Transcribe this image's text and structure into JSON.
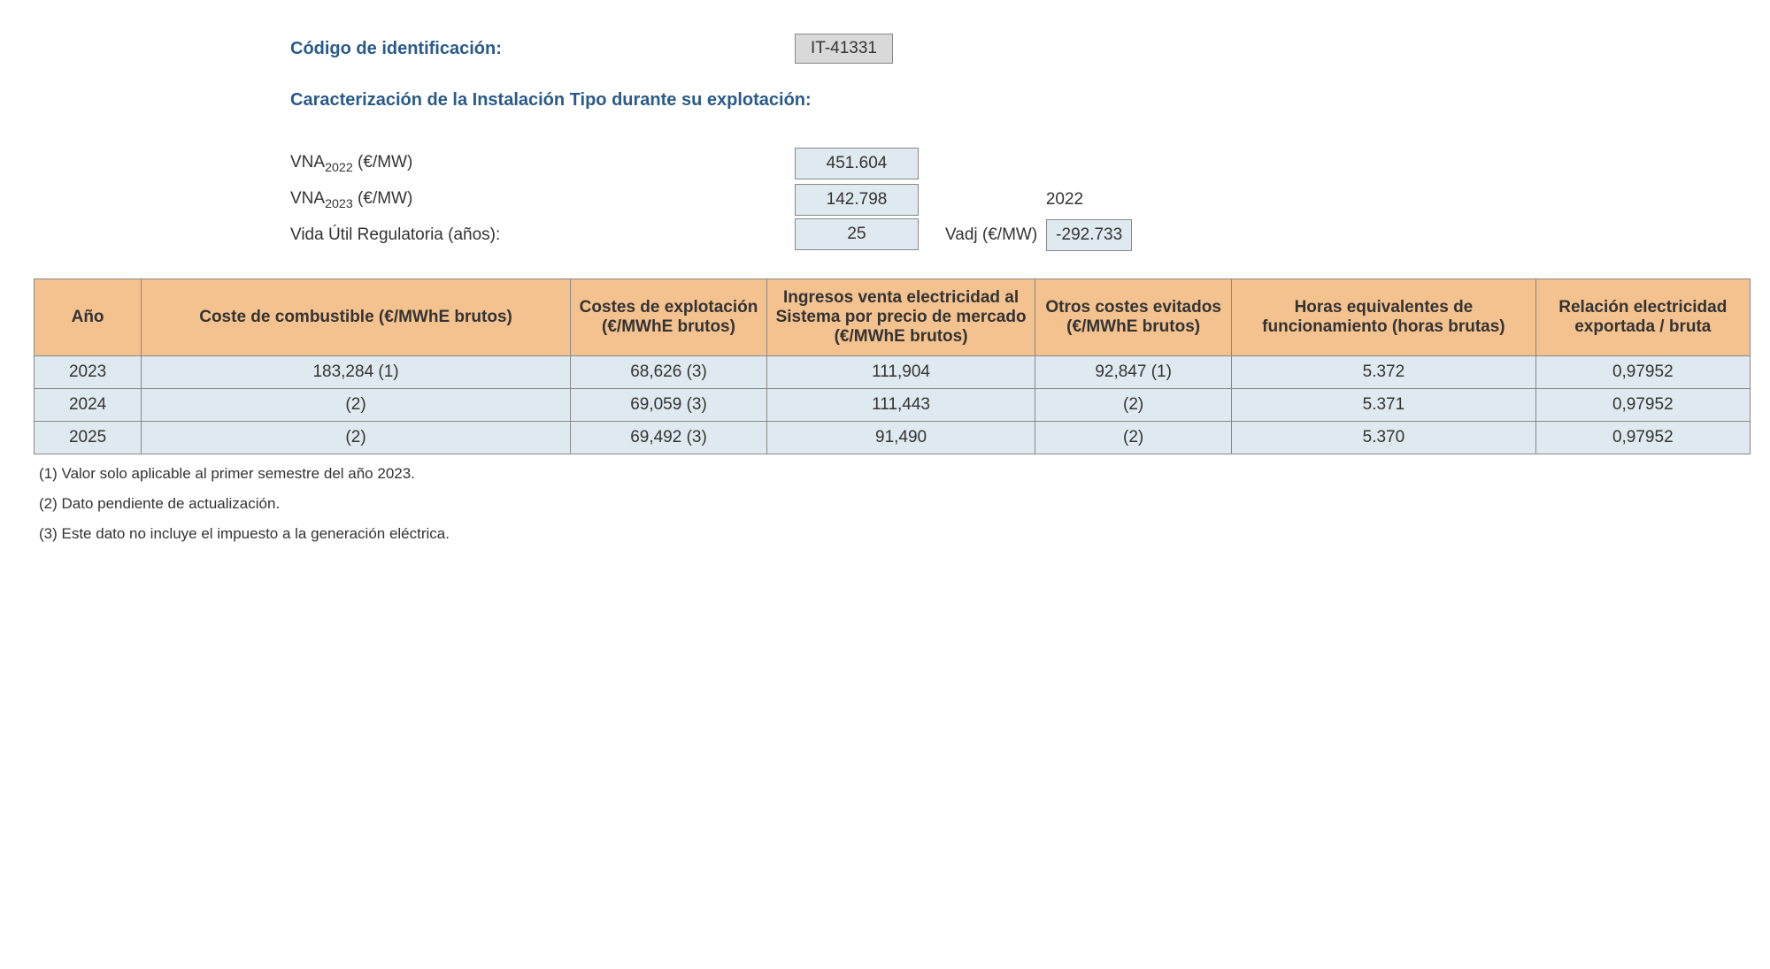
{
  "header": {
    "code_label": "Código de identificación:",
    "code_value": "IT-41331",
    "section_title": "Caracterización de la Instalación Tipo durante su explotación:"
  },
  "params": {
    "vna2022_label_pre": "VNA",
    "vna2022_sub": "2022",
    "vna2022_label_post": " (€/MW)",
    "vna2022_value": "451.604",
    "vna2023_label_pre": "VNA",
    "vna2023_sub": "2023",
    "vna2023_label_post": " (€/MW)",
    "vna2023_value": "142.798",
    "year_side": "2022",
    "vida_label": "Vida Útil Regulatoria (años):",
    "vida_value": "25",
    "vadj_label": "Vadj (€/MW)",
    "vadj_value": "-292.733"
  },
  "table": {
    "headers": {
      "col0": "Año",
      "col1": "Coste de combustible (€/MWhE brutos)",
      "col2": "Costes de explotación (€/MWhE brutos)",
      "col3": "Ingresos venta electricidad al Sistema por precio de mercado (€/MWhE brutos)",
      "col4": "Otros costes evitados (€/MWhE brutos)",
      "col5": "Horas equivalentes de funcionamiento (horas brutas)",
      "col6": "Relación electricidad exportada / bruta"
    },
    "col_widths": [
      "6%",
      "24%",
      "11%",
      "15%",
      "11%",
      "17%",
      "12%"
    ],
    "rows": [
      {
        "c0": "2023",
        "c1": "183,284 (1)",
        "c2": "68,626 (3)",
        "c3": "111,904",
        "c4": "92,847 (1)",
        "c5": "5.372",
        "c6": "0,97952"
      },
      {
        "c0": "2024",
        "c1": "(2)",
        "c2": "69,059 (3)",
        "c3": "111,443",
        "c4": "(2)",
        "c5": "5.371",
        "c6": "0,97952"
      },
      {
        "c0": "2025",
        "c1": "(2)",
        "c2": "69,492 (3)",
        "c3": "91,490",
        "c4": "(2)",
        "c5": "5.370",
        "c6": "0,97952"
      }
    ]
  },
  "footnotes": {
    "n1": "(1) Valor solo aplicable al primer semestre del año 2023.",
    "n2": "(2) Dato pendiente de actualización.",
    "n3": "(3) Este dato no incluye el impuesto a la generación eléctrica."
  },
  "colors": {
    "heading": "#2a5a8a",
    "header_bg": "#f4c28f",
    "cell_bg": "#dfeaf0",
    "code_bg": "#d9d9d9",
    "border": "#888888"
  }
}
